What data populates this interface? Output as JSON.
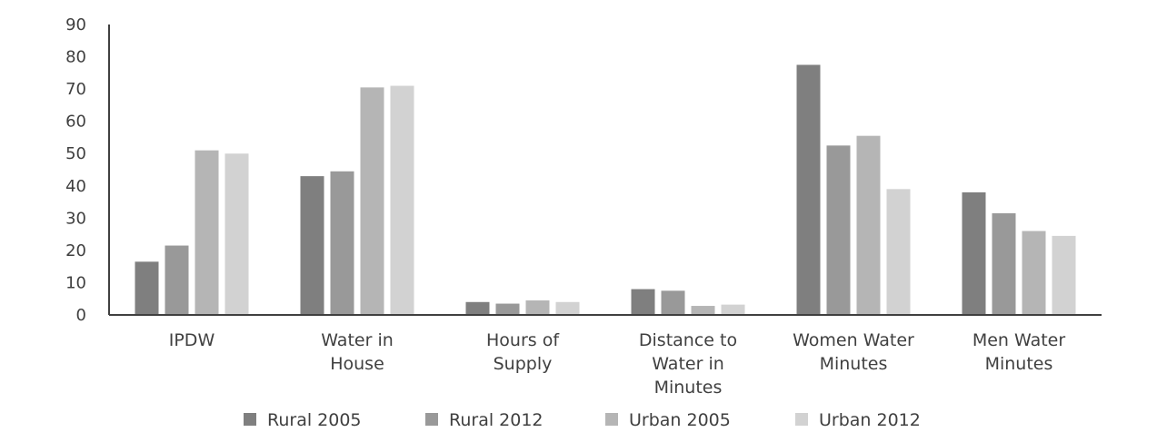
{
  "chart_data": {
    "type": "bar",
    "categories": [
      [
        "IPDW"
      ],
      [
        "Water in",
        "House"
      ],
      [
        "Hours of",
        "Supply"
      ],
      [
        "Distance to",
        "Water in",
        "Minutes"
      ],
      [
        "Women Water",
        "Minutes"
      ],
      [
        "Men Water",
        "Minutes"
      ]
    ],
    "series": [
      {
        "name": "Rural 2005",
        "color": "#7f7f7f",
        "values": [
          16.5,
          43,
          4,
          8,
          77.5,
          38
        ]
      },
      {
        "name": "Rural 2012",
        "color": "#999999",
        "values": [
          21.5,
          44.5,
          3.5,
          7.5,
          52.5,
          31.5
        ]
      },
      {
        "name": "Urban 2005",
        "color": "#b5b5b5",
        "values": [
          51,
          70.5,
          4.5,
          2.8,
          55.5,
          26
        ]
      },
      {
        "name": "Urban 2012",
        "color": "#d2d2d2",
        "values": [
          50,
          71,
          4,
          3.2,
          39,
          24.5
        ]
      }
    ],
    "yticks": [
      "0",
      "10",
      "20",
      "30",
      "40",
      "50",
      "60",
      "70",
      "80",
      "90"
    ],
    "ylim": [
      0,
      90
    ],
    "title": "",
    "xlabel": "",
    "ylabel": "",
    "legend_position": "bottom",
    "grid": false
  }
}
